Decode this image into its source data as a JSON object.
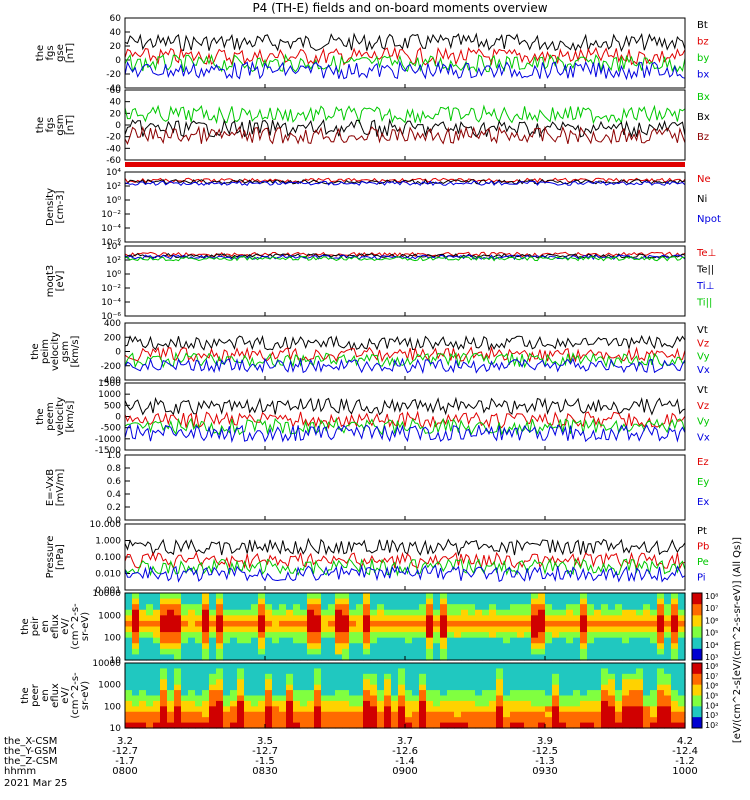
{
  "title": "P4 (TH-E) fields and on-board moments overview",
  "colors": {
    "black": "#000000",
    "red": "#e00000",
    "green": "#00c800",
    "blue": "#0000e0",
    "darkred": "#8b0000"
  },
  "chart_data": {
    "type": "line",
    "x_ticks": [
      "0800",
      "0830",
      "0900",
      "0930",
      "1000"
    ],
    "x_rows": [
      {
        "label": "the_X-CSM",
        "values": [
          "3.2",
          "3.5",
          "3.7",
          "3.9",
          "4.2"
        ]
      },
      {
        "label": "the_Y-GSM",
        "values": [
          "-12.7",
          "-12.7",
          "-12.6",
          "-12.5",
          "-12.4"
        ]
      },
      {
        "label": "the_Z-CSM",
        "values": [
          "-1.7",
          "-1.5",
          "-1.4",
          "-1.3",
          "-1.2"
        ]
      },
      {
        "label": "hhmm",
        "values": []
      }
    ],
    "date": "2021 Mar 25",
    "panels": [
      {
        "name": "fgs-gse",
        "ylabel": [
          "the",
          "fgs",
          "gse",
          "[nT]"
        ],
        "ylim": [
          -40,
          60
        ],
        "ticks": [
          "60",
          "40",
          "20",
          "0",
          "-20",
          "-40"
        ],
        "legend": [
          "Bt",
          "bz",
          "by",
          "bx"
        ],
        "legend_colors": [
          "black",
          "red",
          "green",
          "blue"
        ]
      },
      {
        "name": "fgs-gsm",
        "ylabel": [
          "the",
          "fgs",
          "gsm",
          "[nT]"
        ],
        "ylim": [
          -60,
          60
        ],
        "ticks": [
          "60",
          "40",
          "20",
          "0",
          "-20",
          "-40",
          "-60"
        ],
        "legend": [
          "Bx",
          "Bx",
          "Bz"
        ],
        "legend_colors": [
          "green",
          "black",
          "darkred"
        ]
      },
      {
        "name": "density",
        "ylabel": [
          "Density",
          "[cm-3]"
        ],
        "log": true,
        "ticks": [
          "10⁴",
          "10²",
          "10⁰",
          "10⁻²",
          "10⁻⁴",
          "10⁻⁶"
        ],
        "legend": [
          "Ne",
          "Ni",
          "Npot"
        ],
        "legend_colors": [
          "red",
          "black",
          "blue"
        ]
      },
      {
        "name": "temperature",
        "ylabel": [
          "moqt3",
          "[eV]"
        ],
        "log": true,
        "ticks": [
          "10⁴",
          "10²",
          "10⁰",
          "10⁻²",
          "10⁻⁴",
          "10⁻⁶"
        ],
        "legend": [
          "Te⊥",
          "Te||",
          "Ti⊥",
          "Ti||"
        ],
        "legend_colors": [
          "red",
          "black",
          "blue",
          "green"
        ]
      },
      {
        "name": "peim-velocity",
        "ylabel": [
          "the",
          "peim",
          "velocity",
          "gsm",
          "[km/s]"
        ],
        "ylim": [
          -400,
          400
        ],
        "ticks": [
          "400",
          "200",
          "0",
          "-200",
          "-400"
        ],
        "legend": [
          "Vt",
          "Vz",
          "Vy",
          "Vx"
        ],
        "legend_colors": [
          "black",
          "red",
          "green",
          "blue"
        ]
      },
      {
        "name": "peem-velocity",
        "ylabel": [
          "the",
          "peem",
          "velocity",
          "[km/s]"
        ],
        "ylim": [
          -1500,
          1500
        ],
        "ticks": [
          "1500",
          "1000",
          "500",
          "0",
          "-500",
          "-1000",
          "-1500"
        ],
        "legend": [
          "Vt",
          "Vz",
          "Vy",
          "Vx"
        ],
        "legend_colors": [
          "black",
          "red",
          "green",
          "blue"
        ]
      },
      {
        "name": "efield",
        "ylabel": [
          "E=-VxB",
          "[mV/m]"
        ],
        "ylim": [
          0,
          1
        ],
        "ticks": [
          "1.0",
          "0.8",
          "0.6",
          "0.4",
          "0.2",
          "0.0"
        ],
        "legend": [
          "Ez",
          "Ey",
          "Ex"
        ],
        "legend_colors": [
          "red",
          "green",
          "blue"
        ]
      },
      {
        "name": "pressure",
        "ylabel": [
          "Pressure",
          "[nPa]"
        ],
        "log": true,
        "ticks": [
          "10.000",
          "1.000",
          "0.100",
          "0.010",
          "0.001"
        ],
        "legend": [
          "Pt",
          "Pb",
          "Pe",
          "Pi"
        ],
        "legend_colors": [
          "black",
          "red",
          "green",
          "blue"
        ]
      },
      {
        "name": "peir-spec",
        "ylabel": [
          "the",
          "peir",
          "en",
          "eflux",
          "eV/",
          "(cm^2-s-",
          "sr-eV)"
        ],
        "log": true,
        "ticks": [
          "10000",
          "1000",
          "100",
          "10"
        ],
        "colorbar": [
          "10⁸",
          "10⁷",
          "10⁶",
          "10⁵",
          "10⁴",
          "10³"
        ]
      },
      {
        "name": "peer-spec",
        "ylabel": [
          "the",
          "peer",
          "en",
          "eflux",
          "eV/",
          "(cm^2-s-",
          "sr-eV)"
        ],
        "log": true,
        "ticks": [
          "10000",
          "1000",
          "100",
          "10"
        ],
        "colorbar": [
          "10⁸",
          "10⁷",
          "10⁶",
          "10⁵",
          "10⁴",
          "10³",
          "10²"
        ]
      }
    ],
    "colorbar_label": "[eV/(cm^2-s[eV/(cm^2-s-sr-eV)] (All Qs)]"
  }
}
